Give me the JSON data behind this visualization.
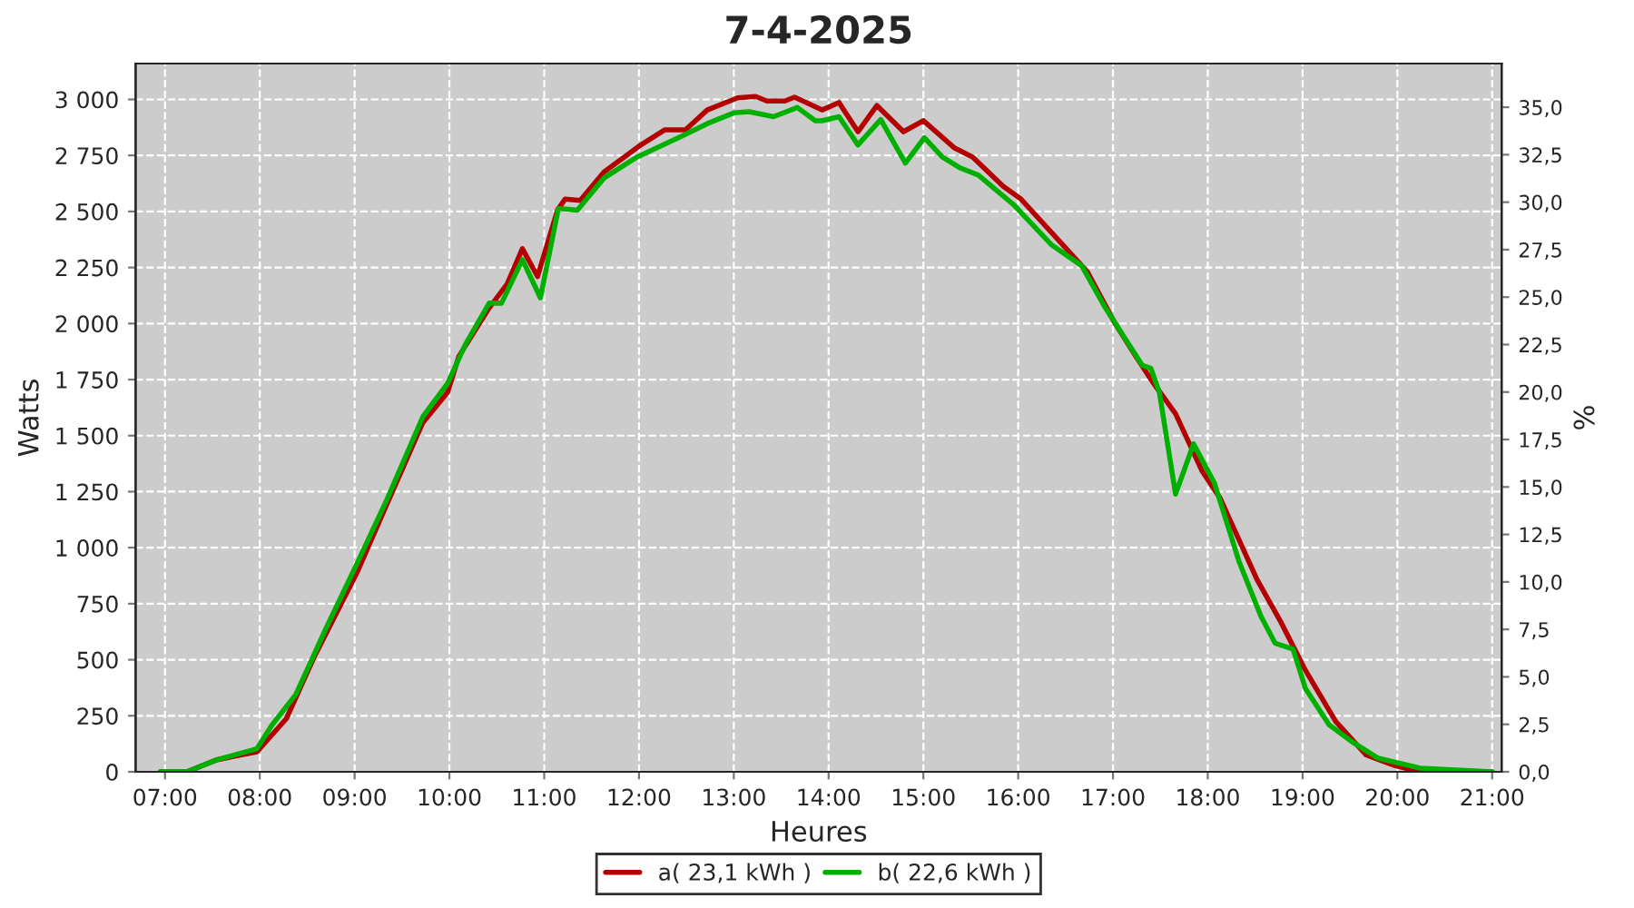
{
  "chart_data": {
    "type": "line",
    "title": "7-4-2025",
    "xlabel": "Heures",
    "ylabel": "Watts",
    "y2label": "%",
    "xlim": [
      6.69,
      21.1
    ],
    "xticks": [
      {
        "value": 7,
        "label": "07:00"
      },
      {
        "value": 8,
        "label": "08:00"
      },
      {
        "value": 9,
        "label": "09:00"
      },
      {
        "value": 10,
        "label": "10:00"
      },
      {
        "value": 11,
        "label": "11:00"
      },
      {
        "value": 12,
        "label": "12:00"
      },
      {
        "value": 13,
        "label": "13:00"
      },
      {
        "value": 14,
        "label": "14:00"
      },
      {
        "value": 15,
        "label": "15:00"
      },
      {
        "value": 16,
        "label": "16:00"
      },
      {
        "value": 17,
        "label": "17:00"
      },
      {
        "value": 18,
        "label": "18:00"
      },
      {
        "value": 19,
        "label": "19:00"
      },
      {
        "value": 20,
        "label": "20:00"
      },
      {
        "value": 21,
        "label": "21:00"
      }
    ],
    "ylim": [
      0,
      3160
    ],
    "yticks": [
      0,
      250,
      500,
      750,
      {
        "value": 1000,
        "label": "1 000"
      },
      {
        "value": 1250,
        "label": "1 250"
      },
      {
        "value": 1500,
        "label": "1 500"
      },
      {
        "value": 1750,
        "label": "1 750"
      },
      {
        "value": 2000,
        "label": "2 000"
      },
      {
        "value": 2250,
        "label": "2 250"
      },
      {
        "value": 2500,
        "label": "2 500"
      },
      {
        "value": 2750,
        "label": "2 750"
      },
      {
        "value": 3000,
        "label": "3 000"
      }
    ],
    "y2lim": [
      0,
      37.3
    ],
    "y2ticks": [
      {
        "value": 0,
        "label": "0,0"
      },
      {
        "value": 2.5,
        "label": "2,5"
      },
      {
        "value": 5,
        "label": "5,0"
      },
      {
        "value": 7.5,
        "label": "7,5"
      },
      {
        "value": 10,
        "label": "10,0"
      },
      {
        "value": 12.5,
        "label": "12,5"
      },
      {
        "value": 15,
        "label": "15,0"
      },
      {
        "value": 17.5,
        "label": "17,5"
      },
      {
        "value": 20,
        "label": "20,0"
      },
      {
        "value": 22.5,
        "label": "22,5"
      },
      {
        "value": 25,
        "label": "25,0"
      },
      {
        "value": 27.5,
        "label": "27,5"
      },
      {
        "value": 30,
        "label": "30,0"
      },
      {
        "value": 32.5,
        "label": "32,5"
      },
      {
        "value": 35,
        "label": "35,0"
      }
    ],
    "grid": true,
    "legend": "bottom",
    "marker": "none",
    "line_style": "solid",
    "series": [
      {
        "name": "a( 23,1 kWh )",
        "color": "#b30000",
        "x": [
          6.95,
          7.23,
          7.55,
          7.97,
          8.28,
          8.57,
          9.02,
          9.34,
          9.72,
          9.98,
          10.1,
          10.42,
          10.61,
          10.77,
          10.93,
          11.14,
          11.22,
          11.38,
          11.63,
          12.02,
          12.27,
          12.49,
          12.72,
          13.04,
          13.23,
          13.35,
          13.54,
          13.64,
          13.74,
          13.93,
          14.11,
          14.31,
          14.51,
          14.79,
          15.0,
          15.33,
          15.52,
          15.84,
          16.03,
          16.35,
          16.73,
          17.02,
          17.24,
          17.43,
          17.66,
          17.94,
          18.13,
          18.52,
          18.77,
          19.03,
          19.35,
          19.67,
          19.98,
          20.24,
          21.0
        ],
        "values": [
          0,
          0,
          54,
          89,
          237,
          509,
          884,
          1194,
          1558,
          1692,
          1854,
          2070,
          2177,
          2334,
          2210,
          2506,
          2555,
          2549,
          2676,
          2797,
          2864,
          2864,
          2953,
          3007,
          3013,
          2993,
          2993,
          3010,
          2991,
          2953,
          2986,
          2856,
          2973,
          2856,
          2905,
          2783,
          2743,
          2613,
          2555,
          2407,
          2231,
          2002,
          1854,
          1732,
          1598,
          1342,
          1221,
          857,
          669,
          453,
          224,
          75,
          27,
          0,
          0
        ]
      },
      {
        "name": "b( 22,6 kWh )",
        "color": "#00b000",
        "x": [
          6.95,
          7.23,
          7.55,
          7.97,
          8.13,
          8.38,
          8.7,
          9.02,
          9.34,
          9.72,
          9.98,
          10.17,
          10.42,
          10.55,
          10.77,
          10.96,
          11.15,
          11.35,
          11.63,
          11.98,
          12.46,
          12.72,
          13.0,
          13.16,
          13.42,
          13.67,
          13.86,
          13.93,
          14.11,
          14.31,
          14.55,
          14.81,
          15.01,
          15.2,
          15.39,
          15.58,
          15.96,
          16.35,
          16.67,
          16.92,
          17.31,
          17.4,
          17.49,
          17.66,
          17.85,
          18.07,
          18.33,
          18.56,
          18.71,
          18.9,
          19.03,
          19.28,
          19.54,
          19.79,
          20.24,
          21.0
        ],
        "values": [
          0,
          0,
          54,
          103,
          210,
          345,
          641,
          924,
          1214,
          1584,
          1732,
          1908,
          2091,
          2091,
          2285,
          2115,
          2514,
          2506,
          2649,
          2743,
          2838,
          2892,
          2940,
          2945,
          2923,
          2964,
          2905,
          2905,
          2923,
          2797,
          2910,
          2716,
          2829,
          2743,
          2694,
          2662,
          2527,
          2352,
          2258,
          2070,
          1813,
          1800,
          1692,
          1239,
          1463,
          1288,
          938,
          695,
          574,
          547,
          372,
          210,
          129,
          62,
          16,
          0
        ]
      }
    ]
  }
}
